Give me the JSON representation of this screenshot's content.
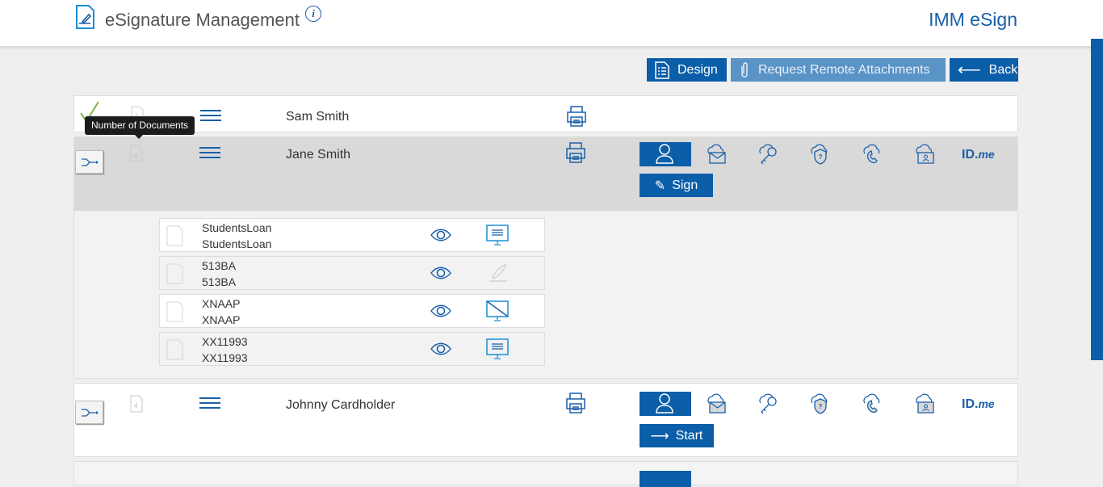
{
  "header": {
    "title": "eSignature Management",
    "brand": "IMM eSign",
    "info": "i"
  },
  "toolbar": {
    "design": "Design",
    "request": "Request Remote Attachments",
    "back": "Back"
  },
  "tooltip": "Number of Documents",
  "signers": [
    {
      "name": "Sam Smith",
      "doc_count": "4",
      "status": "completed"
    },
    {
      "name": "Jane Smith",
      "doc_count": "4",
      "action": "Sign"
    },
    {
      "name": "Johnny Cardholder",
      "doc_count": "4",
      "action": "Start"
    }
  ],
  "auth_methods": [
    "user-icon",
    "cloud-email-icon",
    "cloud-key-icon",
    "cloud-shield-question-icon",
    "cloud-phone-icon",
    "cloud-id-card-icon"
  ],
  "idme": {
    "id": "ID.",
    "me": "me"
  },
  "documents": [
    {
      "line1": "StudentsLoan",
      "line2": "StudentsLoan",
      "status_icon": "monitor-icon"
    },
    {
      "line1": "513BA",
      "line2": "513BA",
      "status_icon": "pen-icon"
    },
    {
      "line1": "XNAAP",
      "line2": "XNAAP",
      "status_icon": "monitor-crossed-icon"
    },
    {
      "line1": "XX11993",
      "line2": "XX11993",
      "status_icon": "monitor-icon"
    }
  ],
  "colors": {
    "primary": "#0b5ea8",
    "disabled": "#5a93c6",
    "check": "#7ab648"
  }
}
